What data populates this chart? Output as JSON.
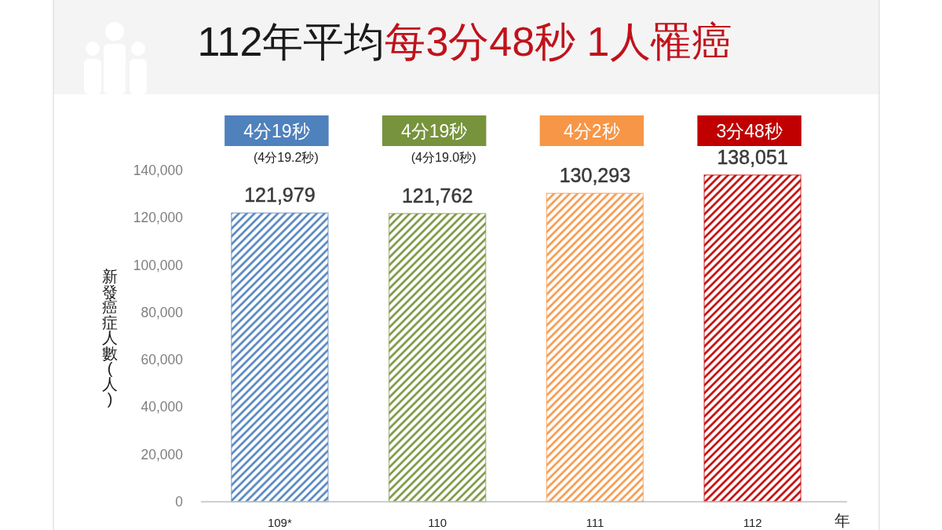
{
  "chart_data": {
    "type": "bar",
    "title": "112年平均每3分48秒 1人罹癌",
    "xlabel": "年",
    "ylabel": "新發癌症人數(人)",
    "categories": [
      "109*",
      "110",
      "111",
      "112"
    ],
    "values": [
      121979,
      121762,
      130293,
      138051
    ],
    "colors": [
      "#4f81bd",
      "#77933c",
      "#f79646",
      "#c00000"
    ],
    "value_labels": [
      "121,979",
      "121,762",
      "130,293",
      "138,051"
    ],
    "ylim": [
      0,
      140000
    ],
    "yticks": [
      0,
      {
        "value": 20000,
        "label": "20,000"
      },
      {
        "value": 40000,
        "label": "40,000"
      },
      {
        "value": 60000,
        "label": "60,000"
      },
      {
        "value": 80000,
        "label": "80,000"
      },
      {
        "value": 100000,
        "label": "100,000"
      },
      {
        "value": 120000,
        "label": "120,000"
      },
      {
        "value": 140000,
        "label": "140,000"
      }
    ],
    "annotations": [
      "4分19秒",
      "4分19秒",
      "4分2秒",
      "3分48秒",
      "(4分19.2秒)",
      "(4分19.0秒)"
    ]
  }
}
